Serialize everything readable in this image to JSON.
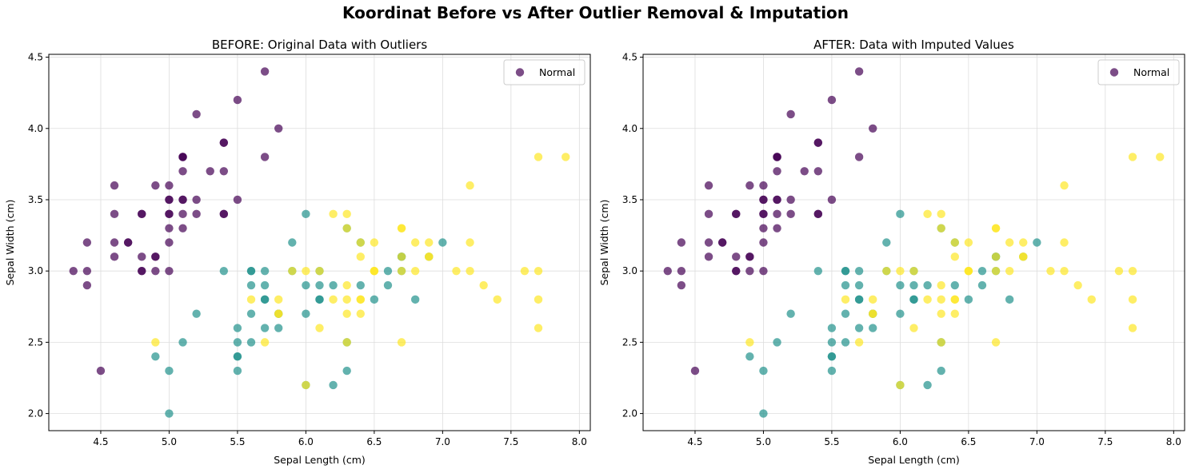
{
  "figure": {
    "suptitle": "Koordinat Before vs After Outlier Removal & Imputation"
  },
  "colors": {
    "class_0": "#440154",
    "class_1": "#21918c",
    "class_2": "#fde725",
    "grid": "#dddddd",
    "axis": "#000000"
  },
  "chart_data": [
    {
      "type": "scatter",
      "title": "BEFORE: Original Data with Outliers",
      "xlabel": "Sepal Length (cm)",
      "ylabel": "Sepal Width (cm)",
      "xlim": [
        4.12,
        8.08
      ],
      "ylim": [
        1.88,
        4.52
      ],
      "xticks": [
        "4.5",
        "5.0",
        "5.5",
        "6.0",
        "6.5",
        "7.0",
        "7.5",
        "8.0"
      ],
      "yticks": [
        "2.0",
        "2.5",
        "3.0",
        "3.5",
        "4.0",
        "4.5"
      ],
      "grid": true,
      "legend": {
        "position": "upper right",
        "entries": [
          "Normal"
        ]
      },
      "series": [
        {
          "name": "Normal",
          "class": 0,
          "x": [
            5.1,
            4.9,
            4.7,
            4.6,
            5.0,
            5.4,
            4.6,
            5.0,
            4.4,
            4.9,
            5.4,
            4.8,
            4.8,
            4.3,
            5.8,
            5.7,
            5.4,
            5.1,
            5.7,
            5.1,
            5.4,
            5.1,
            4.6,
            5.1,
            4.8,
            5.0,
            5.0,
            5.2,
            5.2,
            4.7,
            4.8,
            5.4,
            5.2,
            5.5,
            4.9,
            5.0,
            5.5,
            4.9,
            4.4,
            5.1,
            5.0,
            4.5,
            4.4,
            5.0,
            5.1,
            4.8,
            5.1,
            4.6,
            5.3,
            5.0
          ],
          "y": [
            3.5,
            3.0,
            3.2,
            3.1,
            3.6,
            3.9,
            3.4,
            3.4,
            2.9,
            3.1,
            3.7,
            3.4,
            3.0,
            3.0,
            4.0,
            4.4,
            3.9,
            3.5,
            3.8,
            3.8,
            3.4,
            3.7,
            3.6,
            3.3,
            3.4,
            3.0,
            3.4,
            3.5,
            3.4,
            3.2,
            3.1,
            3.4,
            4.1,
            4.2,
            3.1,
            3.2,
            3.5,
            3.6,
            3.0,
            3.4,
            3.5,
            2.3,
            3.2,
            3.5,
            3.8,
            3.0,
            3.8,
            3.2,
            3.7,
            3.3
          ]
        },
        {
          "name": "",
          "class": 1,
          "x": [
            7.0,
            6.4,
            6.9,
            5.5,
            6.5,
            5.7,
            6.3,
            4.9,
            6.6,
            5.2,
            5.0,
            5.9,
            6.0,
            6.1,
            5.6,
            6.7,
            5.6,
            5.8,
            6.2,
            5.6,
            5.9,
            6.1,
            6.3,
            6.1,
            6.4,
            6.6,
            6.8,
            6.7,
            6.0,
            5.7,
            5.5,
            5.5,
            5.8,
            6.0,
            5.4,
            6.0,
            6.7,
            6.3,
            5.6,
            5.5,
            5.5,
            6.1,
            5.8,
            5.0,
            5.6,
            5.7,
            5.7,
            6.2,
            5.1,
            5.7
          ],
          "y": [
            3.2,
            3.2,
            3.1,
            2.3,
            2.8,
            2.8,
            3.3,
            2.4,
            2.9,
            2.7,
            2.0,
            3.0,
            2.2,
            2.9,
            2.9,
            3.1,
            3.0,
            2.7,
            2.2,
            2.5,
            3.2,
            2.8,
            2.5,
            2.8,
            2.9,
            3.0,
            2.8,
            3.0,
            2.9,
            2.6,
            2.4,
            2.4,
            2.7,
            2.7,
            3.0,
            3.4,
            3.1,
            2.3,
            3.0,
            2.5,
            2.6,
            3.0,
            2.6,
            2.3,
            2.7,
            3.0,
            2.9,
            2.9,
            2.5,
            2.8
          ]
        },
        {
          "name": "",
          "class": 2,
          "x": [
            6.3,
            5.8,
            7.1,
            6.3,
            6.5,
            7.6,
            4.9,
            7.3,
            6.7,
            7.2,
            6.5,
            6.4,
            6.8,
            5.7,
            5.8,
            6.4,
            6.5,
            7.7,
            7.7,
            6.0,
            6.9,
            5.6,
            7.7,
            6.3,
            6.7,
            7.2,
            6.2,
            6.1,
            6.4,
            7.2,
            7.4,
            7.9,
            6.4,
            6.3,
            6.1,
            7.7,
            6.3,
            6.4,
            6.0,
            6.9,
            6.7,
            6.9,
            5.8,
            6.8,
            6.7,
            6.7,
            6.3,
            6.5,
            6.2,
            5.9
          ],
          "y": [
            3.3,
            2.7,
            3.0,
            2.9,
            3.0,
            3.0,
            2.5,
            2.9,
            2.5,
            3.6,
            3.2,
            2.7,
            3.0,
            2.5,
            2.8,
            3.2,
            3.0,
            3.8,
            2.6,
            2.2,
            3.2,
            2.8,
            2.8,
            2.7,
            3.3,
            3.2,
            2.8,
            3.0,
            2.8,
            3.0,
            2.8,
            3.8,
            2.8,
            2.8,
            2.6,
            3.0,
            3.4,
            3.1,
            3.0,
            3.1,
            3.1,
            3.1,
            2.7,
            3.2,
            3.3,
            3.0,
            2.5,
            3.0,
            3.4,
            3.0
          ]
        }
      ]
    },
    {
      "type": "scatter",
      "title": "AFTER: Data with Imputed Values",
      "xlabel": "Sepal Length (cm)",
      "ylabel": "Sepal Width (cm)",
      "xlim": [
        4.12,
        8.08
      ],
      "ylim": [
        1.88,
        4.52
      ],
      "xticks": [
        "4.5",
        "5.0",
        "5.5",
        "6.0",
        "6.5",
        "7.0",
        "7.5",
        "8.0"
      ],
      "yticks": [
        "2.0",
        "2.5",
        "3.0",
        "3.5",
        "4.0",
        "4.5"
      ],
      "grid": true,
      "legend": {
        "position": "upper right",
        "entries": [
          "Normal"
        ]
      },
      "series": [
        {
          "name": "Normal",
          "class": 0,
          "x": [
            5.1,
            4.9,
            4.7,
            4.6,
            5.0,
            5.4,
            4.6,
            5.0,
            4.4,
            4.9,
            5.4,
            4.8,
            4.8,
            4.3,
            5.8,
            5.7,
            5.4,
            5.1,
            5.7,
            5.1,
            5.4,
            5.1,
            4.6,
            5.1,
            4.8,
            5.0,
            5.0,
            5.2,
            5.2,
            4.7,
            4.8,
            5.4,
            5.2,
            5.5,
            4.9,
            5.0,
            5.5,
            4.9,
            4.4,
            5.1,
            5.0,
            4.5,
            4.4,
            5.0,
            5.1,
            4.8,
            5.1,
            4.6,
            5.3,
            5.0
          ],
          "y": [
            3.5,
            3.0,
            3.2,
            3.1,
            3.6,
            3.9,
            3.4,
            3.4,
            2.9,
            3.1,
            3.7,
            3.4,
            3.0,
            3.0,
            4.0,
            4.4,
            3.9,
            3.5,
            3.8,
            3.8,
            3.4,
            3.7,
            3.6,
            3.3,
            3.4,
            3.0,
            3.4,
            3.5,
            3.4,
            3.2,
            3.1,
            3.4,
            4.1,
            4.2,
            3.1,
            3.2,
            3.5,
            3.6,
            3.0,
            3.4,
            3.5,
            2.3,
            3.2,
            3.5,
            3.8,
            3.0,
            3.8,
            3.2,
            3.7,
            3.3
          ]
        },
        {
          "name": "",
          "class": 1,
          "x": [
            7.0,
            6.4,
            6.9,
            5.5,
            6.5,
            5.7,
            6.3,
            4.9,
            6.6,
            5.2,
            5.0,
            5.9,
            6.0,
            6.1,
            5.6,
            6.7,
            5.6,
            5.8,
            6.2,
            5.6,
            5.9,
            6.1,
            6.3,
            6.1,
            6.4,
            6.6,
            6.8,
            6.7,
            6.0,
            5.7,
            5.5,
            5.5,
            5.8,
            6.0,
            5.4,
            6.0,
            6.7,
            6.3,
            5.6,
            5.5,
            5.5,
            6.1,
            5.8,
            5.0,
            5.6,
            5.7,
            5.7,
            6.2,
            5.1,
            5.7
          ],
          "y": [
            3.2,
            3.2,
            3.1,
            2.3,
            2.8,
            2.8,
            3.3,
            2.4,
            2.9,
            2.7,
            2.0,
            3.0,
            2.2,
            2.9,
            2.9,
            3.1,
            3.0,
            2.7,
            2.2,
            2.5,
            3.2,
            2.8,
            2.5,
            2.8,
            2.9,
            3.0,
            2.8,
            3.0,
            2.9,
            2.6,
            2.4,
            2.4,
            2.7,
            2.7,
            3.0,
            3.4,
            3.1,
            2.3,
            3.0,
            2.5,
            2.6,
            3.0,
            2.6,
            2.3,
            2.7,
            3.0,
            2.9,
            2.9,
            2.5,
            2.8
          ]
        },
        {
          "name": "",
          "class": 2,
          "x": [
            6.3,
            5.8,
            7.1,
            6.3,
            6.5,
            7.6,
            4.9,
            7.3,
            6.7,
            7.2,
            6.5,
            6.4,
            6.8,
            5.7,
            5.8,
            6.4,
            6.5,
            7.7,
            7.7,
            6.0,
            6.9,
            5.6,
            7.7,
            6.3,
            6.7,
            7.2,
            6.2,
            6.1,
            6.4,
            7.2,
            7.4,
            7.9,
            6.4,
            6.3,
            6.1,
            7.7,
            6.3,
            6.4,
            6.0,
            6.9,
            6.7,
            6.9,
            5.8,
            6.8,
            6.7,
            6.7,
            6.3,
            6.5,
            6.2,
            5.9
          ],
          "y": [
            3.3,
            2.7,
            3.0,
            2.9,
            3.0,
            3.0,
            2.5,
            2.9,
            2.5,
            3.6,
            3.2,
            2.7,
            3.0,
            2.5,
            2.8,
            3.2,
            3.0,
            3.8,
            2.6,
            2.2,
            3.2,
            2.8,
            2.8,
            2.7,
            3.3,
            3.2,
            2.8,
            3.0,
            2.8,
            3.0,
            2.8,
            3.8,
            2.8,
            2.8,
            2.6,
            3.0,
            3.4,
            3.1,
            3.0,
            3.1,
            3.1,
            3.1,
            2.7,
            3.2,
            3.3,
            3.0,
            2.5,
            3.0,
            3.4,
            3.0
          ]
        }
      ]
    }
  ]
}
